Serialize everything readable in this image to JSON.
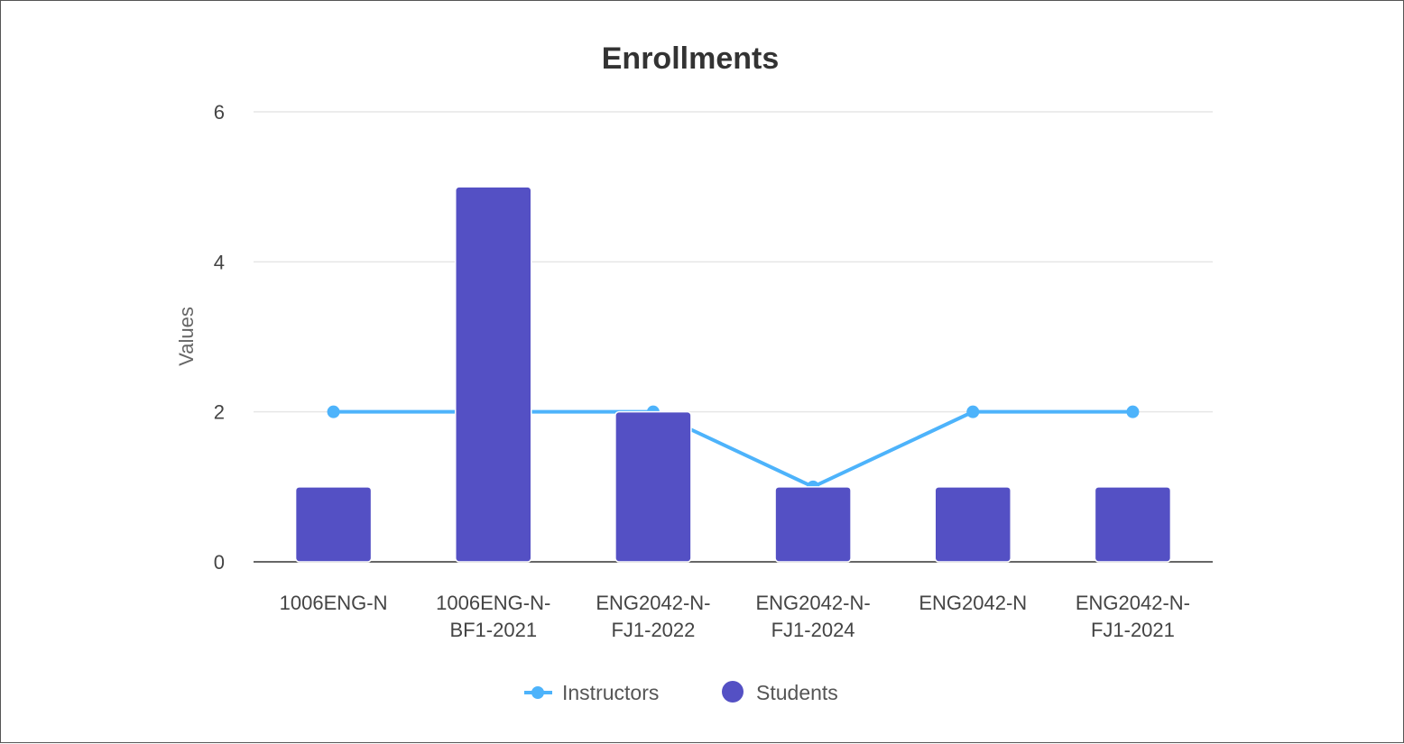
{
  "chart_data": {
    "type": "bar",
    "title": "Enrollments",
    "xlabel": "",
    "ylabel": "Values",
    "ylim": [
      0,
      6
    ],
    "yticks": [
      0,
      2,
      4,
      6
    ],
    "grid": true,
    "legend_position": "bottom",
    "categories": [
      [
        "1006ENG-N"
      ],
      [
        "1006ENG-N-",
        "BF1-2021"
      ],
      [
        "ENG2042-N-",
        "FJ1-2022"
      ],
      [
        "ENG2042-N-",
        "FJ1-2024"
      ],
      [
        "ENG2042-N"
      ],
      [
        "ENG2042-N-",
        "FJ1-2021"
      ]
    ],
    "series": [
      {
        "name": "Instructors",
        "type": "line",
        "color": "#4db3fb",
        "values": [
          2,
          2,
          2,
          1,
          2,
          2
        ]
      },
      {
        "name": "Students",
        "type": "bar",
        "color": "#5450c4",
        "values": [
          1,
          5,
          2,
          1,
          1,
          1
        ]
      }
    ]
  }
}
